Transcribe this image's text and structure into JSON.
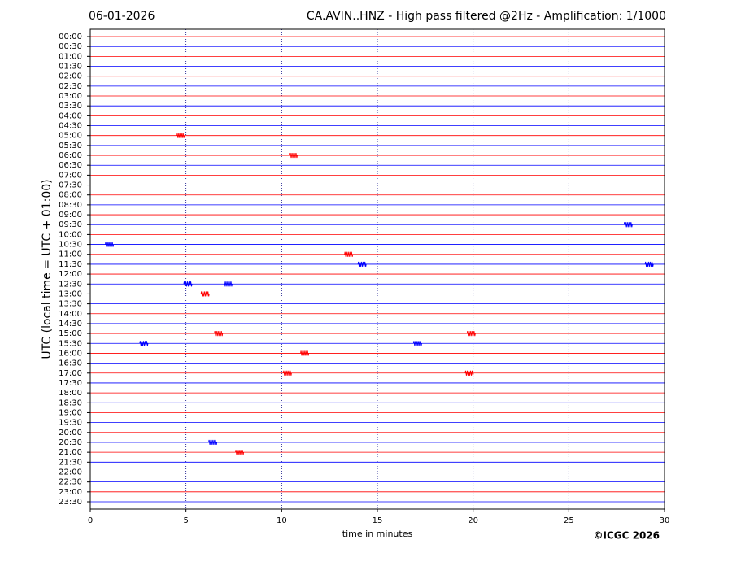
{
  "chart_data": {
    "type": "helicorder",
    "date": "06-01-2026",
    "title": "CA.AVIN..HNZ - High pass filtered @2Hz - Amplification: 1/1000",
    "x_label": "time in minutes",
    "y_label": "UTC (local time = UTC + 01:00)",
    "copyright": "©ICGC 2026",
    "xlim": [
      0,
      30
    ],
    "xticks": [
      0,
      5,
      10,
      15,
      20,
      25,
      30
    ],
    "grid": true,
    "line_colors": [
      "#ff0000",
      "#0000ff"
    ],
    "rows": [
      {
        "label": "00:00",
        "events": []
      },
      {
        "label": "00:30",
        "events": []
      },
      {
        "label": "01:00",
        "events": []
      },
      {
        "label": "01:30",
        "events": []
      },
      {
        "label": "02:00",
        "events": []
      },
      {
        "label": "02:30",
        "events": []
      },
      {
        "label": "03:00",
        "events": []
      },
      {
        "label": "03:30",
        "events": []
      },
      {
        "label": "04:00",
        "events": []
      },
      {
        "label": "04:30",
        "events": []
      },
      {
        "label": "05:00",
        "events": [
          4.7
        ]
      },
      {
        "label": "05:30",
        "events": []
      },
      {
        "label": "06:00",
        "events": [
          10.6
        ]
      },
      {
        "label": "06:30",
        "events": []
      },
      {
        "label": "07:00",
        "events": []
      },
      {
        "label": "07:30",
        "events": []
      },
      {
        "label": "08:00",
        "events": []
      },
      {
        "label": "08:30",
        "events": []
      },
      {
        "label": "09:00",
        "events": []
      },
      {
        "label": "09:30",
        "events": [
          28.1
        ]
      },
      {
        "label": "10:00",
        "events": []
      },
      {
        "label": "10:30",
        "events": [
          1.0
        ]
      },
      {
        "label": "11:00",
        "events": [
          13.5
        ]
      },
      {
        "label": "11:30",
        "events": [
          14.2,
          29.2
        ]
      },
      {
        "label": "12:00",
        "events": []
      },
      {
        "label": "12:30",
        "events": [
          5.1,
          7.2
        ]
      },
      {
        "label": "13:00",
        "events": [
          6.0
        ]
      },
      {
        "label": "13:30",
        "events": []
      },
      {
        "label": "14:00",
        "events": []
      },
      {
        "label": "14:30",
        "events": []
      },
      {
        "label": "15:00",
        "events": [
          6.7,
          19.9
        ]
      },
      {
        "label": "15:30",
        "events": [
          2.8,
          17.1
        ]
      },
      {
        "label": "16:00",
        "events": [
          11.2
        ]
      },
      {
        "label": "16:30",
        "events": []
      },
      {
        "label": "17:00",
        "events": [
          10.3,
          19.8
        ]
      },
      {
        "label": "17:30",
        "events": []
      },
      {
        "label": "18:00",
        "events": []
      },
      {
        "label": "18:30",
        "events": []
      },
      {
        "label": "19:00",
        "events": []
      },
      {
        "label": "19:30",
        "events": []
      },
      {
        "label": "20:00",
        "events": []
      },
      {
        "label": "20:30",
        "events": [
          6.4
        ]
      },
      {
        "label": "21:00",
        "events": [
          7.8
        ]
      },
      {
        "label": "21:30",
        "events": []
      },
      {
        "label": "22:00",
        "events": []
      },
      {
        "label": "22:30",
        "events": []
      },
      {
        "label": "23:00",
        "events": []
      },
      {
        "label": "23:30",
        "events": []
      }
    ]
  }
}
